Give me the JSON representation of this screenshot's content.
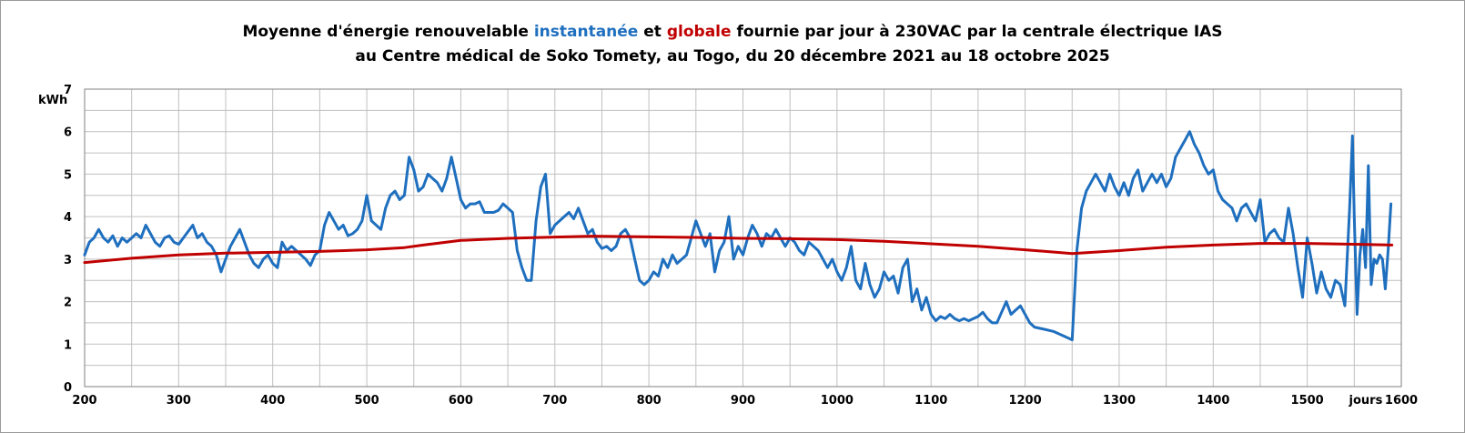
{
  "title": {
    "line1_a": "Moyenne d'énergie renouvelable ",
    "line1_b": "instantanée",
    "line1_c": " et ",
    "line1_d": "globale",
    "line1_e": " fournie par jour à 230VAC par la centrale électrique IAS",
    "line2": "au Centre médical de Soko Tomety, au Togo, du 20 décembre 2021 au 18 octobre 2025"
  },
  "colors": {
    "instant": "#1f6fbf",
    "global": "#c00000",
    "grid": "#c0c0c0",
    "axis": "#808080"
  },
  "chart_data": {
    "type": "line",
    "title": "Moyenne d'énergie renouvelable instantanée et globale fournie par jour à 230VAC par la centrale électrique IAS au Centre médical de Soko Tomety, au Togo, du 20 décembre 2021 au 18 octobre 2025",
    "xlabel": "jours",
    "ylabel": "kWh",
    "xlim": [
      200,
      1600
    ],
    "ylim": [
      0,
      7
    ],
    "x_ticks": [
      200,
      300,
      400,
      500,
      600,
      700,
      800,
      900,
      1000,
      1100,
      1200,
      1300,
      1400,
      1500,
      1600
    ],
    "y_ticks": [
      0,
      1,
      2,
      3,
      4,
      5,
      6,
      7
    ],
    "grid": true,
    "series": [
      {
        "name": "instantanée",
        "color": "#1f6fbf",
        "points": [
          [
            200,
            3.1
          ],
          [
            205,
            3.4
          ],
          [
            210,
            3.5
          ],
          [
            215,
            3.7
          ],
          [
            220,
            3.5
          ],
          [
            225,
            3.4
          ],
          [
            230,
            3.55
          ],
          [
            235,
            3.3
          ],
          [
            240,
            3.5
          ],
          [
            245,
            3.4
          ],
          [
            250,
            3.5
          ],
          [
            255,
            3.6
          ],
          [
            260,
            3.5
          ],
          [
            265,
            3.8
          ],
          [
            270,
            3.6
          ],
          [
            275,
            3.4
          ],
          [
            280,
            3.3
          ],
          [
            285,
            3.5
          ],
          [
            290,
            3.55
          ],
          [
            295,
            3.4
          ],
          [
            300,
            3.35
          ],
          [
            305,
            3.5
          ],
          [
            310,
            3.65
          ],
          [
            315,
            3.8
          ],
          [
            320,
            3.5
          ],
          [
            325,
            3.6
          ],
          [
            330,
            3.4
          ],
          [
            335,
            3.3
          ],
          [
            340,
            3.1
          ],
          [
            345,
            2.7
          ],
          [
            350,
            3.0
          ],
          [
            355,
            3.3
          ],
          [
            360,
            3.5
          ],
          [
            365,
            3.7
          ],
          [
            370,
            3.4
          ],
          [
            375,
            3.1
          ],
          [
            380,
            2.9
          ],
          [
            385,
            2.8
          ],
          [
            390,
            3.0
          ],
          [
            395,
            3.1
          ],
          [
            400,
            2.9
          ],
          [
            405,
            2.8
          ],
          [
            410,
            3.4
          ],
          [
            415,
            3.2
          ],
          [
            420,
            3.3
          ],
          [
            425,
            3.2
          ],
          [
            430,
            3.1
          ],
          [
            435,
            3.0
          ],
          [
            440,
            2.85
          ],
          [
            445,
            3.1
          ],
          [
            450,
            3.2
          ],
          [
            455,
            3.8
          ],
          [
            460,
            4.1
          ],
          [
            465,
            3.9
          ],
          [
            470,
            3.7
          ],
          [
            475,
            3.8
          ],
          [
            480,
            3.55
          ],
          [
            485,
            3.6
          ],
          [
            490,
            3.7
          ],
          [
            495,
            3.9
          ],
          [
            500,
            4.5
          ],
          [
            505,
            3.9
          ],
          [
            510,
            3.8
          ],
          [
            515,
            3.7
          ],
          [
            520,
            4.2
          ],
          [
            525,
            4.5
          ],
          [
            530,
            4.6
          ],
          [
            535,
            4.4
          ],
          [
            540,
            4.5
          ],
          [
            545,
            5.4
          ],
          [
            550,
            5.1
          ],
          [
            555,
            4.6
          ],
          [
            560,
            4.7
          ],
          [
            565,
            5.0
          ],
          [
            570,
            4.9
          ],
          [
            575,
            4.8
          ],
          [
            580,
            4.6
          ],
          [
            585,
            4.9
          ],
          [
            590,
            5.4
          ],
          [
            595,
            4.9
          ],
          [
            600,
            4.4
          ],
          [
            605,
            4.2
          ],
          [
            610,
            4.3
          ],
          [
            615,
            4.3
          ],
          [
            620,
            4.35
          ],
          [
            625,
            4.1
          ],
          [
            630,
            4.1
          ],
          [
            635,
            4.1
          ],
          [
            640,
            4.15
          ],
          [
            645,
            4.3
          ],
          [
            650,
            4.2
          ],
          [
            655,
            4.1
          ],
          [
            660,
            3.2
          ],
          [
            665,
            2.8
          ],
          [
            670,
            2.5
          ],
          [
            675,
            2.5
          ],
          [
            680,
            3.9
          ],
          [
            685,
            4.7
          ],
          [
            690,
            5.0
          ],
          [
            695,
            3.6
          ],
          [
            700,
            3.8
          ],
          [
            705,
            3.9
          ],
          [
            710,
            4.0
          ],
          [
            715,
            4.1
          ],
          [
            720,
            3.95
          ],
          [
            725,
            4.2
          ],
          [
            730,
            3.9
          ],
          [
            735,
            3.6
          ],
          [
            740,
            3.7
          ],
          [
            745,
            3.4
          ],
          [
            750,
            3.25
          ],
          [
            755,
            3.3
          ],
          [
            760,
            3.2
          ],
          [
            765,
            3.3
          ],
          [
            770,
            3.6
          ],
          [
            775,
            3.7
          ],
          [
            780,
            3.5
          ],
          [
            785,
            3.0
          ],
          [
            790,
            2.5
          ],
          [
            795,
            2.4
          ],
          [
            800,
            2.5
          ],
          [
            805,
            2.7
          ],
          [
            810,
            2.6
          ],
          [
            815,
            3.0
          ],
          [
            820,
            2.8
          ],
          [
            825,
            3.1
          ],
          [
            830,
            2.9
          ],
          [
            835,
            3.0
          ],
          [
            840,
            3.1
          ],
          [
            845,
            3.5
          ],
          [
            850,
            3.9
          ],
          [
            855,
            3.6
          ],
          [
            860,
            3.3
          ],
          [
            865,
            3.6
          ],
          [
            870,
            2.7
          ],
          [
            875,
            3.2
          ],
          [
            880,
            3.4
          ],
          [
            885,
            4.0
          ],
          [
            890,
            3.0
          ],
          [
            895,
            3.3
          ],
          [
            900,
            3.1
          ],
          [
            905,
            3.5
          ],
          [
            910,
            3.8
          ],
          [
            915,
            3.6
          ],
          [
            920,
            3.3
          ],
          [
            925,
            3.6
          ],
          [
            930,
            3.5
          ],
          [
            935,
            3.7
          ],
          [
            940,
            3.5
          ],
          [
            945,
            3.3
          ],
          [
            950,
            3.5
          ],
          [
            955,
            3.4
          ],
          [
            960,
            3.2
          ],
          [
            965,
            3.1
          ],
          [
            970,
            3.4
          ],
          [
            975,
            3.3
          ],
          [
            980,
            3.2
          ],
          [
            985,
            3.0
          ],
          [
            990,
            2.8
          ],
          [
            995,
            3.0
          ],
          [
            1000,
            2.7
          ],
          [
            1005,
            2.5
          ],
          [
            1010,
            2.8
          ],
          [
            1015,
            3.3
          ],
          [
            1020,
            2.5
          ],
          [
            1025,
            2.3
          ],
          [
            1030,
            2.9
          ],
          [
            1035,
            2.4
          ],
          [
            1040,
            2.1
          ],
          [
            1045,
            2.3
          ],
          [
            1050,
            2.7
          ],
          [
            1055,
            2.5
          ],
          [
            1060,
            2.6
          ],
          [
            1065,
            2.2
          ],
          [
            1070,
            2.8
          ],
          [
            1075,
            3.0
          ],
          [
            1080,
            2.0
          ],
          [
            1085,
            2.3
          ],
          [
            1090,
            1.8
          ],
          [
            1095,
            2.1
          ],
          [
            1100,
            1.7
          ],
          [
            1105,
            1.55
          ],
          [
            1110,
            1.65
          ],
          [
            1115,
            1.6
          ],
          [
            1120,
            1.7
          ],
          [
            1125,
            1.6
          ],
          [
            1130,
            1.55
          ],
          [
            1135,
            1.6
          ],
          [
            1140,
            1.55
          ],
          [
            1145,
            1.6
          ],
          [
            1150,
            1.65
          ],
          [
            1155,
            1.75
          ],
          [
            1160,
            1.6
          ],
          [
            1165,
            1.5
          ],
          [
            1170,
            1.5
          ],
          [
            1175,
            1.75
          ],
          [
            1180,
            2.0
          ],
          [
            1185,
            1.7
          ],
          [
            1190,
            1.8
          ],
          [
            1195,
            1.9
          ],
          [
            1200,
            1.7
          ],
          [
            1205,
            1.5
          ],
          [
            1210,
            1.4
          ],
          [
            1220,
            1.35
          ],
          [
            1230,
            1.3
          ],
          [
            1240,
            1.2
          ],
          [
            1250,
            1.1
          ],
          [
            1255,
            3.2
          ],
          [
            1260,
            4.2
          ],
          [
            1265,
            4.6
          ],
          [
            1270,
            4.8
          ],
          [
            1275,
            5.0
          ],
          [
            1280,
            4.8
          ],
          [
            1285,
            4.6
          ],
          [
            1290,
            5.0
          ],
          [
            1295,
            4.7
          ],
          [
            1300,
            4.5
          ],
          [
            1305,
            4.8
          ],
          [
            1310,
            4.5
          ],
          [
            1315,
            4.9
          ],
          [
            1320,
            5.1
          ],
          [
            1325,
            4.6
          ],
          [
            1330,
            4.8
          ],
          [
            1335,
            5.0
          ],
          [
            1340,
            4.8
          ],
          [
            1345,
            5.0
          ],
          [
            1350,
            4.7
          ],
          [
            1355,
            4.9
          ],
          [
            1360,
            5.4
          ],
          [
            1365,
            5.6
          ],
          [
            1370,
            5.8
          ],
          [
            1375,
            6.0
          ],
          [
            1380,
            5.7
          ],
          [
            1385,
            5.5
          ],
          [
            1390,
            5.2
          ],
          [
            1395,
            5.0
          ],
          [
            1400,
            5.1
          ],
          [
            1405,
            4.6
          ],
          [
            1410,
            4.4
          ],
          [
            1415,
            4.3
          ],
          [
            1420,
            4.2
          ],
          [
            1425,
            3.9
          ],
          [
            1430,
            4.2
          ],
          [
            1435,
            4.3
          ],
          [
            1440,
            4.1
          ],
          [
            1445,
            3.9
          ],
          [
            1450,
            4.4
          ],
          [
            1455,
            3.4
          ],
          [
            1460,
            3.6
          ],
          [
            1465,
            3.7
          ],
          [
            1470,
            3.5
          ],
          [
            1475,
            3.4
          ],
          [
            1480,
            4.2
          ],
          [
            1485,
            3.6
          ],
          [
            1490,
            2.8
          ],
          [
            1495,
            2.1
          ],
          [
            1500,
            3.5
          ],
          [
            1505,
            2.9
          ],
          [
            1510,
            2.2
          ],
          [
            1515,
            2.7
          ],
          [
            1520,
            2.3
          ],
          [
            1525,
            2.1
          ],
          [
            1530,
            2.5
          ],
          [
            1535,
            2.4
          ],
          [
            1540,
            1.9
          ],
          [
            1545,
            4.2
          ],
          [
            1548,
            5.9
          ],
          [
            1550,
            4.0
          ],
          [
            1553,
            1.7
          ],
          [
            1556,
            3.1
          ],
          [
            1559,
            3.7
          ],
          [
            1562,
            2.8
          ],
          [
            1565,
            5.2
          ],
          [
            1568,
            2.4
          ],
          [
            1571,
            3.0
          ],
          [
            1574,
            2.9
          ],
          [
            1577,
            3.1
          ],
          [
            1580,
            3.0
          ],
          [
            1583,
            2.3
          ],
          [
            1586,
            3.2
          ],
          [
            1589,
            4.3
          ]
        ]
      },
      {
        "name": "globale",
        "color": "#c00000",
        "points": [
          [
            200,
            2.92
          ],
          [
            250,
            3.02
          ],
          [
            300,
            3.1
          ],
          [
            350,
            3.14
          ],
          [
            400,
            3.16
          ],
          [
            450,
            3.18
          ],
          [
            500,
            3.22
          ],
          [
            540,
            3.27
          ],
          [
            560,
            3.33
          ],
          [
            600,
            3.44
          ],
          [
            650,
            3.49
          ],
          [
            700,
            3.52
          ],
          [
            740,
            3.54
          ],
          [
            780,
            3.53
          ],
          [
            850,
            3.51
          ],
          [
            900,
            3.49
          ],
          [
            950,
            3.48
          ],
          [
            1000,
            3.46
          ],
          [
            1050,
            3.42
          ],
          [
            1100,
            3.36
          ],
          [
            1150,
            3.3
          ],
          [
            1200,
            3.22
          ],
          [
            1250,
            3.13
          ],
          [
            1300,
            3.2
          ],
          [
            1350,
            3.28
          ],
          [
            1400,
            3.33
          ],
          [
            1450,
            3.37
          ],
          [
            1500,
            3.37
          ],
          [
            1550,
            3.35
          ],
          [
            1590,
            3.33
          ]
        ]
      }
    ]
  }
}
